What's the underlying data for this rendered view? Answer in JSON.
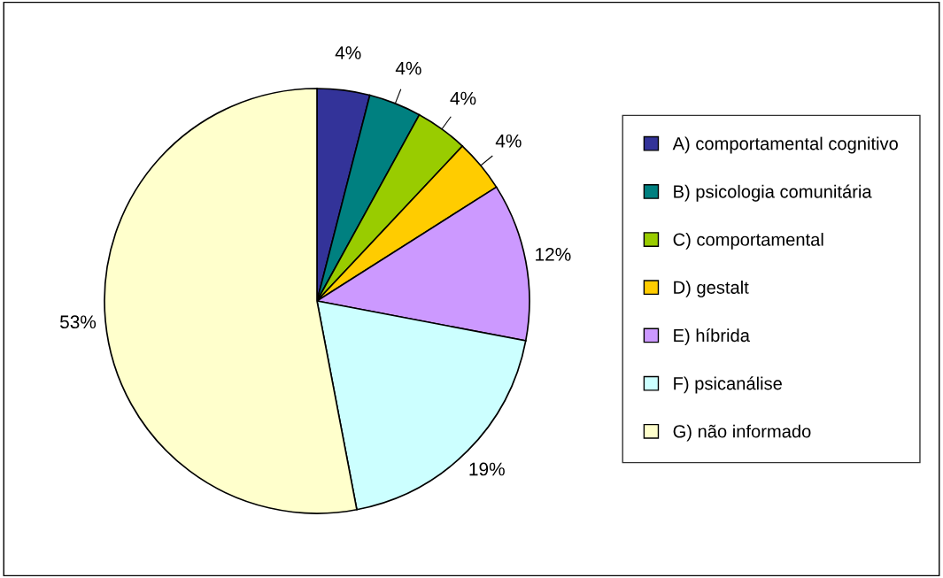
{
  "chart_data": {
    "type": "pie",
    "categories": [
      "A) comportamental cognitivo",
      "B) psicologia comunitária",
      "C) comportamental",
      "D) gestalt",
      "E) híbrida",
      "F) psicanálise",
      "G) não informado"
    ],
    "values": [
      4,
      4,
      4,
      4,
      12,
      19,
      53
    ],
    "colors": [
      "#333399",
      "#008080",
      "#99cc00",
      "#ffcc00",
      "#cc99ff",
      "#ccffff",
      "#ffffcc"
    ],
    "value_labels": [
      "4%",
      "4%",
      "4%",
      "4%",
      "12%",
      "19%",
      "53%"
    ],
    "legend": "right"
  }
}
